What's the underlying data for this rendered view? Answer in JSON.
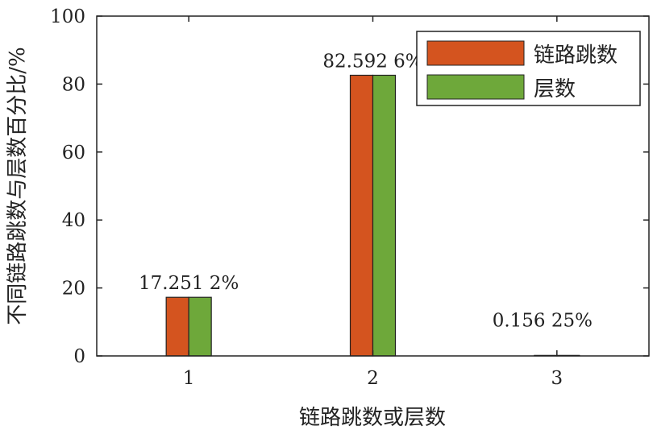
{
  "chart_data": {
    "type": "bar",
    "xlabel": "链路跳数或层数",
    "ylabel": "不同链路跳数与层数百分比/%",
    "categories": [
      "1",
      "2",
      "3"
    ],
    "y_ticks": [
      "0",
      "20",
      "40",
      "60",
      "80",
      "100"
    ],
    "ylim": [
      0,
      100
    ],
    "xlim": [
      0.5,
      3.5
    ],
    "grid": false,
    "legend_position": "top-right",
    "series": [
      {
        "name": "链路跳数",
        "color": "#d4541f",
        "values": [
          17.2512,
          82.5926,
          0.15625
        ]
      },
      {
        "name": "层数",
        "color": "#6ea83a",
        "values": [
          17.2512,
          82.5926,
          0.15625
        ]
      }
    ],
    "data_labels": [
      "17.251 2%",
      "82.592 6%",
      "0.156 25%"
    ]
  }
}
